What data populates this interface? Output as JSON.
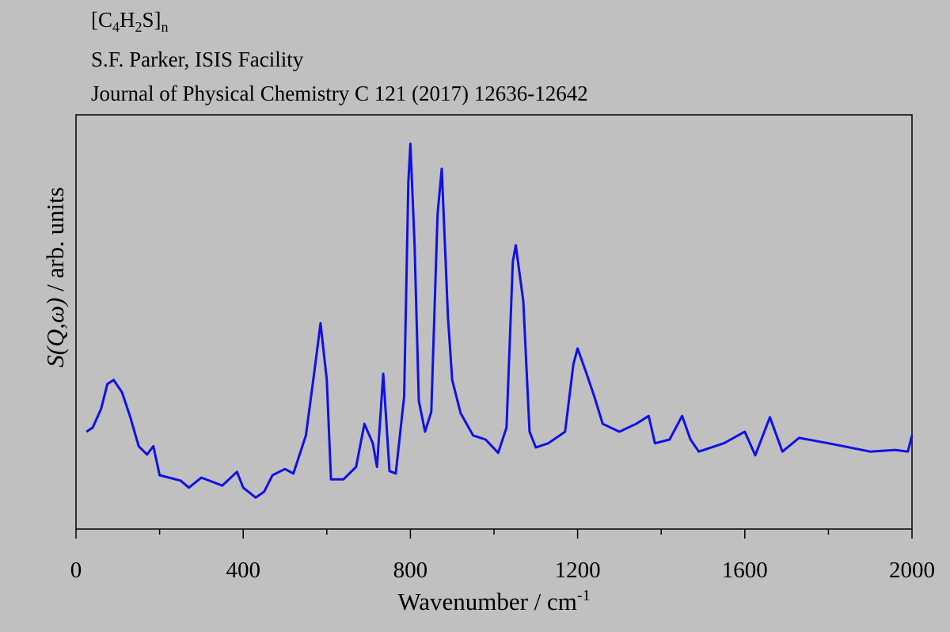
{
  "chart_data": {
    "type": "line",
    "title": [
      "[C",
      "4",
      "H",
      "2",
      "S]",
      "n"
    ],
    "subtitle": [
      "S.F. Parker, ISIS Facility",
      "Journal of Physical Chemistry C 121 (2017) 12636-12642"
    ],
    "x_label": [
      "Wavenumber / cm",
      "-1"
    ],
    "y_label": [
      "S(Q,ω)",
      " / arb. units"
    ],
    "xlim": [
      0,
      2000
    ],
    "xticks": [
      0,
      400,
      800,
      1200,
      1600,
      2000
    ],
    "xticks_minor": [
      200,
      600,
      1000,
      1400,
      1800
    ],
    "ylim": [
      0,
      100
    ],
    "series": [
      {
        "color": "#1010e6",
        "x": [
          25,
          40,
          60,
          75,
          90,
          110,
          130,
          150,
          170,
          185,
          200,
          250,
          270,
          300,
          350,
          385,
          400,
          430,
          450,
          470,
          500,
          520,
          550,
          570,
          585,
          600,
          610,
          640,
          670,
          690,
          710,
          720,
          735,
          750,
          765,
          785,
          795,
          800,
          810,
          820,
          835,
          850,
          865,
          875,
          890,
          900,
          920,
          950,
          980,
          1010,
          1030,
          1045,
          1052,
          1070,
          1085,
          1100,
          1130,
          1170,
          1190,
          1200,
          1220,
          1240,
          1260,
          1300,
          1340,
          1370,
          1385,
          1420,
          1450,
          1470,
          1490,
          1550,
          1600,
          1625,
          1660,
          1690,
          1730,
          1800,
          1900,
          1960,
          1990,
          2000
        ],
        "values": [
          23.5,
          24.5,
          29,
          35,
          36,
          33,
          27,
          20,
          18,
          20,
          13,
          11.7,
          10,
          12.4,
          10.5,
          13.8,
          10,
          7.6,
          9,
          13,
          14.5,
          13.4,
          22.6,
          37.9,
          49.7,
          36,
          12,
          12,
          15,
          25.4,
          20.7,
          15,
          37.5,
          14,
          13.4,
          32,
          83.7,
          93,
          68.5,
          31,
          23.5,
          28.3,
          76,
          87,
          51,
          36,
          28,
          22.6,
          21.6,
          18.4,
          24.5,
          64.6,
          68.5,
          55,
          23.5,
          19.7,
          20.7,
          23.5,
          39.8,
          43.6,
          37.9,
          32,
          25.4,
          23.5,
          25.4,
          27.3,
          20.7,
          21.6,
          27.3,
          21.6,
          18.7,
          20.7,
          23.5,
          17.8,
          27,
          18.7,
          22,
          20.7,
          18.7,
          19.1,
          18.7,
          22.6
        ]
      }
    ]
  }
}
